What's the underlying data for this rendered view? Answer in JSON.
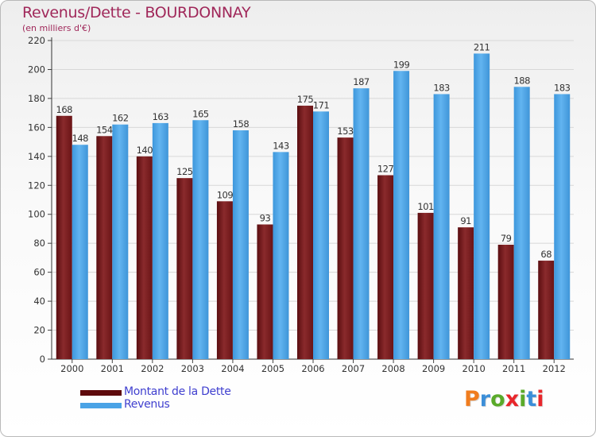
{
  "title": "Revenus/Dette - BOURDONNAY",
  "subtitle": "(en milliers d'€)",
  "legend": {
    "dette_label": "Montant de la Dette",
    "revenus_label": "Revenus"
  },
  "logo": {
    "text": "Proxiti",
    "colors": [
      "#f07c1e",
      "#3b8ed8",
      "#5aaa2a",
      "#e8262b",
      "#5aaa2a",
      "#3b8ed8",
      "#e8262b"
    ]
  },
  "colors": {
    "dette": "#7a1a1c",
    "revenus": "#4aa3e6",
    "title": "#a0285a",
    "legend_text": "#3f3fcf"
  },
  "chart_data": {
    "type": "bar",
    "title": "Revenus/Dette - BOURDONNAY",
    "ylabel": "(en milliers d'€)",
    "ylim": [
      0,
      220
    ],
    "yticks": [
      0,
      20,
      40,
      60,
      80,
      100,
      120,
      140,
      160,
      180,
      200,
      220
    ],
    "grid": true,
    "legend_position": "bottom-left",
    "categories": [
      "2000",
      "2001",
      "2002",
      "2003",
      "2004",
      "2005",
      "2006",
      "2007",
      "2008",
      "2009",
      "2010",
      "2011",
      "2012"
    ],
    "series": [
      {
        "name": "Montant de la Dette",
        "values": [
          168,
          154,
          140,
          125,
          109,
          93,
          175,
          153,
          127,
          101,
          91,
          79,
          68
        ]
      },
      {
        "name": "Revenus",
        "values": [
          148,
          162,
          163,
          165,
          158,
          143,
          171,
          187,
          199,
          183,
          211,
          188,
          183
        ]
      }
    ]
  }
}
